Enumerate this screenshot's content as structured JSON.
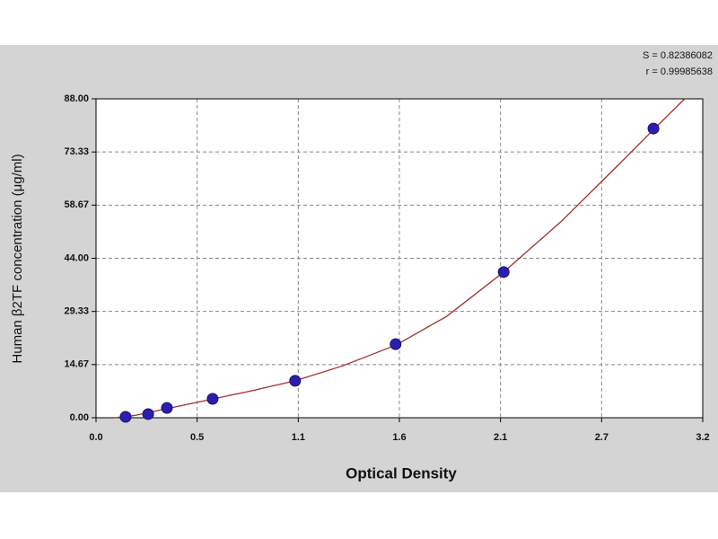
{
  "chart_data": {
    "type": "scatter",
    "x_label": "Optical Density",
    "y_label": "Human β2TF concentration (μg/ml)",
    "annotations": [
      "S = 0.82386082",
      "r = 0.99985638"
    ],
    "xlim": [
      0,
      3.2
    ],
    "ylim": [
      0,
      88
    ],
    "xticks": [
      {
        "value": 0,
        "label": "0.0"
      },
      {
        "value": 0.5333,
        "label": "0.5"
      },
      {
        "value": 1.0667,
        "label": "1.1"
      },
      1.6,
      {
        "value": 2.1333,
        "label": "2.1"
      },
      {
        "value": 2.6667,
        "label": "2.7"
      },
      3.2
    ],
    "yticks": [
      {
        "value": 0,
        "label": "0.00"
      },
      14.67,
      29.33,
      {
        "value": 44,
        "label": "44.00"
      },
      58.67,
      73.33,
      {
        "value": 88,
        "label": "88.00"
      }
    ],
    "grid": true,
    "series": [
      {
        "color": "#2b1fae",
        "x": [
          0.156,
          0.275,
          0.374,
          0.615,
          1.05,
          1.58,
          2.15,
          2.94
        ],
        "values": [
          0.25,
          1,
          2.7,
          5.2,
          10.2,
          20.3,
          40.2,
          79.8
        ]
      }
    ],
    "curve": {
      "color": "#a0302a",
      "x": [
        0.1,
        0.2,
        0.4,
        0.6,
        0.8,
        1.05,
        1.3,
        1.58,
        1.85,
        2.15,
        2.45,
        2.75,
        2.94,
        3.105
      ],
      "y": [
        0,
        0.6,
        2.8,
        5.0,
        7.2,
        10.2,
        14.3,
        20.0,
        28,
        40.2,
        54,
        69.5,
        79.5,
        88
      ]
    }
  }
}
